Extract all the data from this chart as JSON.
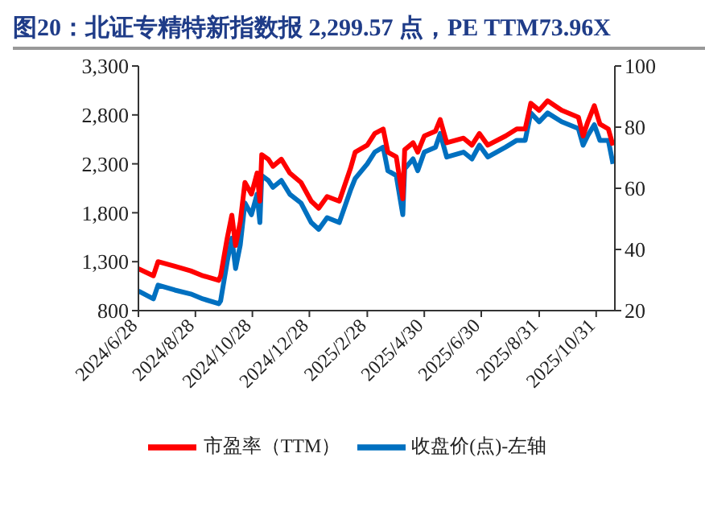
{
  "chart_data": {
    "type": "line",
    "title": "图20：北证专精特新指数报 2,299.57 点，PE TTM73.96X",
    "x": [
      "2024-06-28",
      "2024-07-14",
      "2024-07-19",
      "2024-08-06",
      "2024-08-23",
      "2024-09-05",
      "2024-09-22",
      "2024-09-24",
      "2024-10-01",
      "2024-10-06",
      "2024-10-10",
      "2024-10-15",
      "2024-10-20",
      "2024-10-27",
      "2024-11-02",
      "2024-11-05",
      "2024-11-07",
      "2024-11-14",
      "2024-11-19",
      "2024-11-28",
      "2024-12-07",
      "2024-12-19",
      "2024-12-30",
      "2025-01-07",
      "2025-01-16",
      "2025-01-29",
      "2025-02-10",
      "2025-02-15",
      "2025-02-28",
      "2025-03-08",
      "2025-03-17",
      "2025-03-22",
      "2025-03-31",
      "2025-04-07",
      "2025-04-09",
      "2025-04-18",
      "2025-04-23",
      "2025-04-30",
      "2025-05-12",
      "2025-05-17",
      "2025-05-24",
      "2025-06-11",
      "2025-06-20",
      "2025-06-28",
      "2025-07-07",
      "2025-07-26",
      "2025-08-07",
      "2025-08-16",
      "2025-08-22",
      "2025-08-31",
      "2025-09-09",
      "2025-09-24",
      "2025-10-12",
      "2025-10-17",
      "2025-10-22",
      "2025-10-29",
      "2025-11-04",
      "2025-11-13",
      "2025-11-18"
    ],
    "series": [
      {
        "name": "收盘价(点)-左轴",
        "color": "#0070c0",
        "values": [
          1000,
          920,
          1060,
          1010,
          970,
          920,
          870,
          900,
          1300,
          1540,
          1230,
          1470,
          1900,
          1780,
          1990,
          1700,
          2180,
          2130,
          2060,
          2130,
          1990,
          1900,
          1700,
          1630,
          1750,
          1700,
          2030,
          2150,
          2300,
          2420,
          2470,
          2230,
          2180,
          1780,
          2250,
          2350,
          2230,
          2420,
          2470,
          2610,
          2370,
          2420,
          2350,
          2490,
          2370,
          2470,
          2540,
          2540,
          2820,
          2730,
          2820,
          2730,
          2660,
          2490,
          2590,
          2700,
          2540,
          2540,
          2300
        ]
      },
      {
        "name": "市盈率（TTM）",
        "color": "#ff0000",
        "axis": "y2",
        "values": [
          33.7,
          31.4,
          36.0,
          34.5,
          33.0,
          31.4,
          29.9,
          31.4,
          43.6,
          51.2,
          41.3,
          49.0,
          61.9,
          58.1,
          65.0,
          55.8,
          71.0,
          69.5,
          67.2,
          69.5,
          65.0,
          61.9,
          55.8,
          53.5,
          57.3,
          55.8,
          66.5,
          71.8,
          74.1,
          77.9,
          79.4,
          71.8,
          70.3,
          56.6,
          72.6,
          74.9,
          71.8,
          77.1,
          78.7,
          82.5,
          74.9,
          76.4,
          74.1,
          77.9,
          74.1,
          77.1,
          79.4,
          79.4,
          87.8,
          85.5,
          88.6,
          85.5,
          83.2,
          77.1,
          81.7,
          87.0,
          81.0,
          79.4,
          74.0
        ]
      }
    ],
    "xlim": [
      "2024-06-28",
      "2025-11-20"
    ],
    "xticks": [
      {
        "value": "2024-06-28",
        "label": "2024/6/28"
      },
      {
        "value": "2024-08-28",
        "label": "2024/8/28"
      },
      {
        "value": "2024-10-28",
        "label": "2024/10/28"
      },
      {
        "value": "2024-12-28",
        "label": "2024/12/28"
      },
      {
        "value": "2025-02-28",
        "label": "2025/2/28"
      },
      {
        "value": "2025-04-30",
        "label": "2025/4/30"
      },
      {
        "value": "2025-06-30",
        "label": "2025/6/30"
      },
      {
        "value": "2025-08-31",
        "label": "2025/8/31"
      },
      {
        "value": "2025-10-31",
        "label": "2025/10/31"
      }
    ],
    "ylim": [
      800,
      3300
    ],
    "yticks": [
      {
        "value": 800,
        "label": "800"
      },
      {
        "value": 1300,
        "label": "1,300"
      },
      {
        "value": 1800,
        "label": "1,800"
      },
      {
        "value": 2300,
        "label": "2,300"
      },
      {
        "value": 2800,
        "label": "2,800"
      },
      {
        "value": 3300,
        "label": "3,300"
      }
    ],
    "y2lim": [
      20,
      100
    ],
    "y2ticks": [
      20,
      40,
      60,
      80,
      100
    ],
    "legend": "bottom",
    "marker": "none",
    "line_style": "solid"
  }
}
